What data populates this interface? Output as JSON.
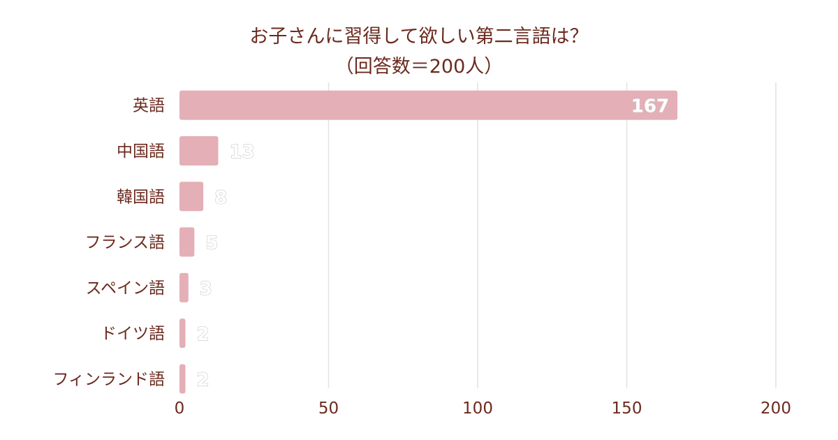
{
  "chart_data": {
    "type": "bar",
    "orientation": "horizontal",
    "title": "お子さんに習得して欲しい第二言語は？",
    "subtitle": "（回答数＝200人）",
    "categories": [
      "英語",
      "中国語",
      "韓国語",
      "フランス語",
      "スペイン語",
      "ドイツ語",
      "フィンランド語"
    ],
    "values": [
      167,
      13,
      8,
      5,
      3,
      2,
      2
    ],
    "xlim": [
      0,
      200
    ],
    "xticks": [
      0,
      50,
      100,
      150,
      200
    ],
    "grid": true,
    "legend": "none",
    "colors": {
      "bar": "#e4afb6",
      "text": "#6b2a1e",
      "grid": "#e2e2e2",
      "value_label": "#ffffff"
    }
  }
}
